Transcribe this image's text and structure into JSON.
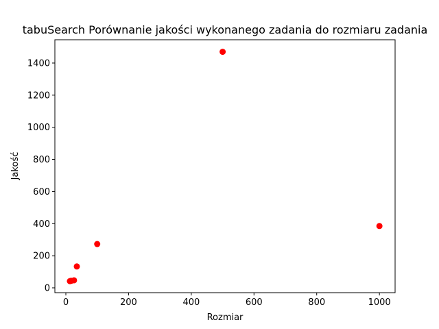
{
  "chart_data": {
    "type": "scatter",
    "title": "tabuSearch Porównanie jakości wykonanego zadania do rozmiaru zadania",
    "xlabel": "Rozmiar",
    "ylabel": "Jakość",
    "xlim": [
      -35,
      1050
    ],
    "ylim": [
      -30,
      1545
    ],
    "xticks": [
      0,
      200,
      400,
      600,
      800,
      1000
    ],
    "yticks": [
      0,
      200,
      400,
      600,
      800,
      1000,
      1200,
      1400
    ],
    "grid": false,
    "marker_color": "#ff0000",
    "points": [
      {
        "x": 13,
        "y": 42
      },
      {
        "x": 17,
        "y": 44
      },
      {
        "x": 26,
        "y": 47
      },
      {
        "x": 35,
        "y": 133
      },
      {
        "x": 100,
        "y": 273
      },
      {
        "x": 500,
        "y": 1470
      },
      {
        "x": 1000,
        "y": 385
      }
    ]
  }
}
